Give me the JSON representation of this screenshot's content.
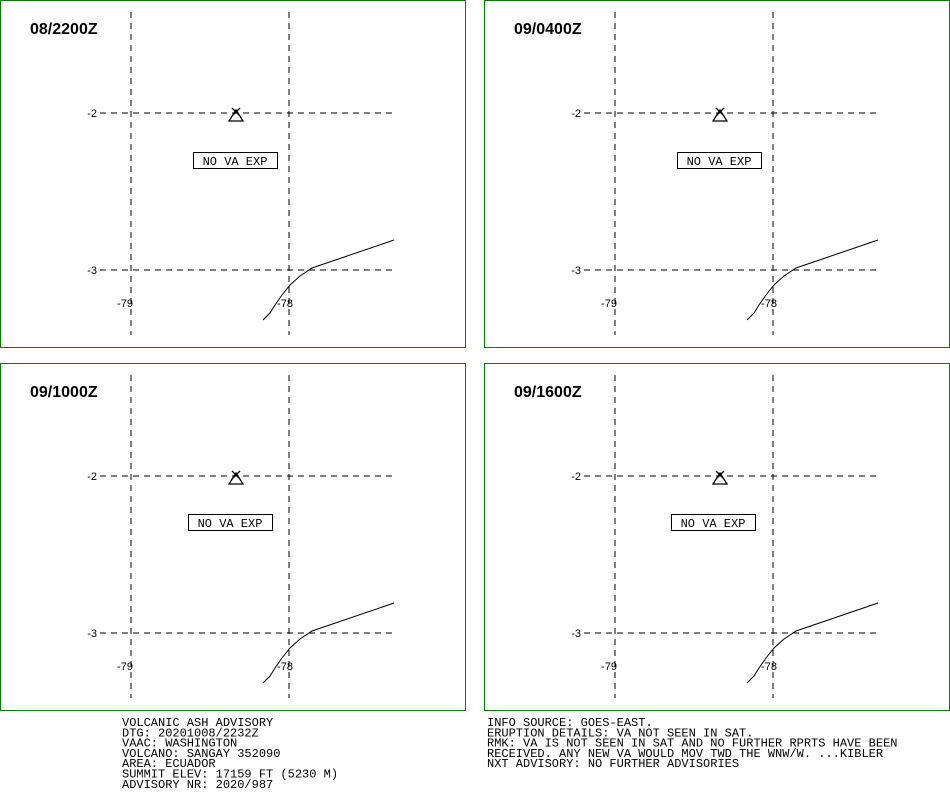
{
  "panels": [
    {
      "time": "08/2200Z",
      "lat_labels": [
        "-2",
        "-3"
      ],
      "lon_labels": [
        "-79",
        "-78"
      ],
      "status": "NO VA EXP"
    },
    {
      "time": "09/0400Z",
      "lat_labels": [
        "-2",
        "-3"
      ],
      "lon_labels": [
        "-79",
        "-78"
      ],
      "status": "NO VA EXP"
    },
    {
      "time": "09/1000Z",
      "lat_labels": [
        "-2",
        "-3"
      ],
      "lon_labels": [
        "-79",
        "-78"
      ],
      "status": "NO VA EXP"
    },
    {
      "time": "09/1600Z",
      "lat_labels": [
        "-2",
        "-3"
      ],
      "lon_labels": [
        "-79",
        "-78"
      ],
      "status": "NO VA EXP"
    }
  ],
  "footer": {
    "left": [
      "VOLCANIC ASH ADVISORY",
      "DTG: 20201008/2232Z",
      "VAAC: WASHINGTON",
      "VOLCANO: SANGAY 352090",
      "AREA: ECUADOR",
      "SUMMIT ELEV: 17159 FT (5230 M)",
      "ADVISORY NR: 2020/987"
    ],
    "right": [
      "INFO SOURCE: GOES-EAST.",
      "ERUPTION DETAILS: VA NOT SEEN IN SAT.",
      "RMK: VA IS NOT SEEN IN SAT AND NO FURTHER RPRTS HAVE BEEN",
      "RECEIVED. ANY NEW VA WOULD MOV TWD THE WNW/W. ...KIBLER",
      "NXT ADVISORY: NO FURTHER ADVISORIES"
    ]
  }
}
